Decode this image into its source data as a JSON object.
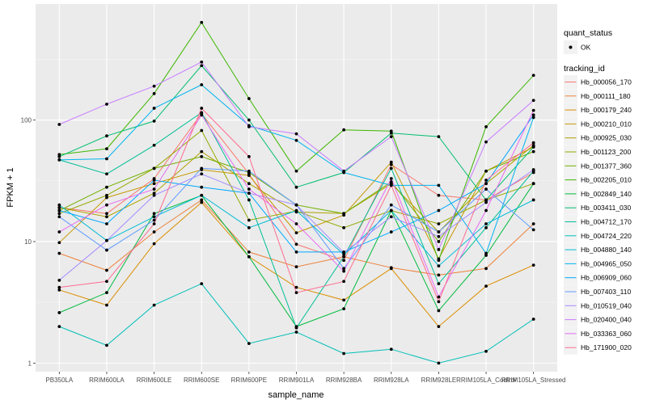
{
  "chart_data": {
    "type": "line",
    "xlabel": "sample_name",
    "ylabel": "FPKM + 1",
    "yscale": "log10",
    "ylim": [
      0.85,
      900
    ],
    "y_ticks": [
      1,
      10,
      100
    ],
    "y_tick_labels": [
      "1",
      "10",
      "100"
    ],
    "grid": true,
    "legend_position": "right",
    "categories": [
      "PB350LA",
      "RRIM600LA",
      "RRIM600LE",
      "RRIM600SE",
      "RRIM600PE",
      "RRIM901LA",
      "RRIM928BA",
      "RRIM928LA",
      "RRIM928LE",
      "RRIM105LA_Control",
      "RRIM105LA_Stressed"
    ],
    "category_labels": [
      "PB350LA",
      "RRIM600LA",
      "RRIM600LE",
      "RRIM600SE",
      "RRIM600PE",
      "RRIM901LA",
      "RRIM928BA",
      "RRIM928LA",
      "RRIM928LE",
      "RRIM105LA_Control",
      "RRIM105LA_Stressed"
    ],
    "shape_legend": {
      "title": "quant_status",
      "entries": [
        "OK"
      ]
    },
    "color_legend_title": "tracking_id",
    "series": [
      {
        "name": "Hb_000056_170",
        "color": "#F8766D",
        "values": [
          19,
          17,
          33,
          113,
          36,
          9.5,
          7,
          43,
          24,
          22,
          37
        ]
      },
      {
        "name": "Hb_000111_180",
        "color": "#EC823C",
        "values": [
          8,
          5.8,
          12,
          22,
          8.2,
          6.2,
          7.5,
          6.1,
          5.3,
          6,
          14
        ]
      },
      {
        "name": "Hb_000179_240",
        "color": "#DB8E00",
        "values": [
          4,
          3,
          9.6,
          21,
          7.5,
          4.2,
          3.3,
          6,
          2,
          4.3,
          6.4
        ]
      },
      {
        "name": "Hb_000210_010",
        "color": "#C79800",
        "values": [
          9.8,
          23,
          30,
          39,
          35,
          11.8,
          16.5,
          45,
          7.2,
          38,
          60
        ]
      },
      {
        "name": "Hb_000925_030",
        "color": "#AFA200",
        "values": [
          19,
          16,
          25,
          55,
          30,
          17.5,
          17,
          30,
          12,
          30,
          62
        ]
      },
      {
        "name": "Hb_001123_200",
        "color": "#94AA00",
        "values": [
          17,
          24,
          40,
          82,
          15,
          17.8,
          13,
          18,
          14,
          22,
          30
        ]
      },
      {
        "name": "Hb_001377_360",
        "color": "#72B000",
        "values": [
          18,
          28,
          40,
          50,
          37,
          20,
          17,
          31,
          10,
          38,
          55
        ]
      },
      {
        "name": "Hb_002205_010",
        "color": "#3DB700",
        "values": [
          52,
          58,
          165,
          635,
          150,
          38,
          83,
          81,
          7,
          88,
          233
        ]
      },
      {
        "name": "Hb_002849_140",
        "color": "#00BB3D",
        "values": [
          2.6,
          3.8,
          17,
          24,
          7.5,
          2,
          2.8,
          18,
          2.7,
          7.7,
          30
        ]
      },
      {
        "name": "Hb_003411_030",
        "color": "#00BE70",
        "values": [
          50,
          74,
          98,
          280,
          100,
          28,
          37,
          78,
          73,
          22,
          60
        ]
      },
      {
        "name": "Hb_004712_170",
        "color": "#00BF96",
        "values": [
          47,
          36,
          62,
          115,
          22,
          1.95,
          7.5,
          40,
          4.5,
          13,
          38
        ]
      },
      {
        "name": "Hb_004724_220",
        "color": "#00BFB7",
        "values": [
          2,
          1.4,
          3,
          4.5,
          1.45,
          1.8,
          1.2,
          1.3,
          1,
          1.25,
          2.3
        ]
      },
      {
        "name": "Hb_004880_140",
        "color": "#00BCD6",
        "values": [
          20,
          10.2,
          16,
          24,
          13,
          18,
          7.8,
          18,
          6.3,
          14,
          22
        ]
      },
      {
        "name": "Hb_004965_050",
        "color": "#00B4EF",
        "values": [
          47,
          48,
          125,
          195,
          90,
          68,
          37,
          29,
          29,
          8,
          105
        ]
      },
      {
        "name": "Hb_006909_060",
        "color": "#00A8FF",
        "values": [
          18,
          14,
          32,
          28,
          25,
          8.2,
          8.2,
          12,
          18,
          30,
          110
        ]
      },
      {
        "name": "Hb_007403_110",
        "color": "#619CFF",
        "values": [
          16,
          8.5,
          15,
          40,
          38,
          20,
          6,
          20,
          12,
          27,
          12.5
        ]
      },
      {
        "name": "Hb_010519_040",
        "color": "#A58AFF",
        "values": [
          4.8,
          10.2,
          24,
          36,
          25,
          20,
          8.1,
          16,
          11,
          21,
          39
        ]
      },
      {
        "name": "Hb_020400_040",
        "color": "#C77CFF",
        "values": [
          92,
          135,
          190,
          300,
          88,
          77,
          38,
          73,
          8.6,
          66,
          145
        ]
      },
      {
        "name": "Hb_033363_060",
        "color": "#E76BF3",
        "values": [
          12,
          20,
          27,
          110,
          27,
          14,
          5.7,
          33,
          3.5,
          18,
          120
        ]
      },
      {
        "name": "Hb_171900_020",
        "color": "#FF6C91",
        "values": [
          4.2,
          4.7,
          14,
          125,
          50,
          3.8,
          4.7,
          29,
          3.2,
          32,
          65
        ]
      }
    ]
  }
}
